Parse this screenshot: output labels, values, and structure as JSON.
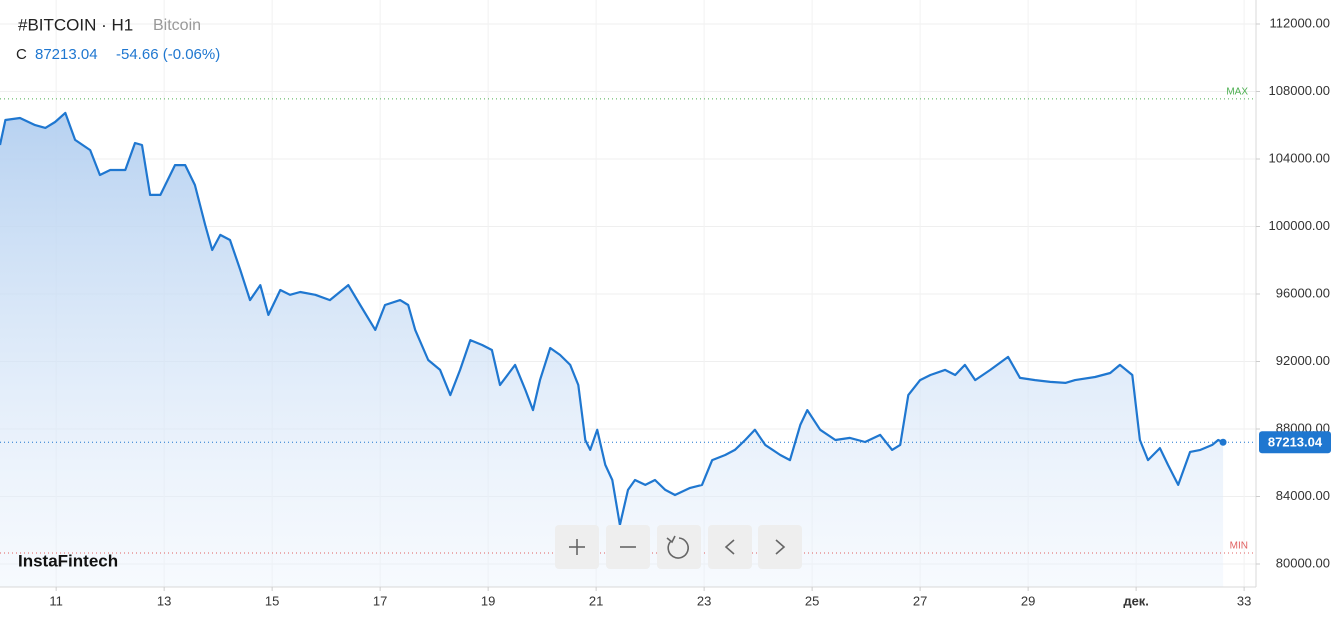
{
  "chart_data": {
    "type": "area",
    "title": "#BITCOIN · H1",
    "subtitle": "Bitcoin",
    "close_prefix": "C",
    "close": 87213.04,
    "change": "-54.66 (-0.06%)",
    "watermark": "InstaFintech",
    "x": [
      9.96,
      10.06,
      10.33,
      10.61,
      10.8,
      10.98,
      11.17,
      11.35,
      11.63,
      11.81,
      12.0,
      12.28,
      12.46,
      12.59,
      12.74,
      12.93,
      13.2,
      13.39,
      13.57,
      13.76,
      13.89,
      14.04,
      14.22,
      14.41,
      14.59,
      14.78,
      14.93,
      15.15,
      15.33,
      15.52,
      15.8,
      16.07,
      16.41,
      16.63,
      16.91,
      17.09,
      17.37,
      17.52,
      17.65,
      17.89,
      18.11,
      18.3,
      18.48,
      18.67,
      18.89,
      19.07,
      19.22,
      19.5,
      19.69,
      19.83,
      19.96,
      20.15,
      20.33,
      20.52,
      20.67,
      20.8,
      20.89,
      21.02,
      21.17,
      21.3,
      21.44,
      21.59,
      21.72,
      21.91,
      22.09,
      22.28,
      22.46,
      22.74,
      22.96,
      23.15,
      23.39,
      23.57,
      23.76,
      23.94,
      24.13,
      24.41,
      24.59,
      24.78,
      24.91,
      25.15,
      25.43,
      25.7,
      25.98,
      26.26,
      26.48,
      26.63,
      26.78,
      27.0,
      27.19,
      27.46,
      27.65,
      27.83,
      28.02,
      28.3,
      28.63,
      28.85,
      29.13,
      29.41,
      29.69,
      29.87,
      30.24,
      30.52,
      30.7,
      30.93,
      31.07,
      31.22,
      31.44,
      31.59,
      31.78,
      32.0,
      32.19,
      32.41,
      32.52,
      32.61
    ],
    "series": [
      {
        "name": "Bitcoin",
        "color": "#1f77d0",
        "values": [
          104830,
          106310,
          106430,
          106010,
          105840,
          106190,
          106730,
          105130,
          104530,
          103050,
          103350,
          103350,
          104950,
          104830,
          101870,
          101870,
          103640,
          103640,
          102460,
          100090,
          98610,
          99500,
          99200,
          97420,
          95640,
          96530,
          94760,
          96240,
          95950,
          96120,
          95950,
          95640,
          96530,
          95350,
          93870,
          95350,
          95640,
          95350,
          93870,
          92090,
          91500,
          90010,
          91500,
          93270,
          92980,
          92680,
          90610,
          91800,
          90310,
          89120,
          90900,
          92800,
          92390,
          91800,
          90610,
          87350,
          86760,
          87950,
          85870,
          84980,
          82310,
          84390,
          84980,
          84690,
          84980,
          84390,
          84090,
          84510,
          84690,
          86160,
          86460,
          86760,
          87350,
          87950,
          87060,
          86460,
          86160,
          88240,
          89120,
          87950,
          87350,
          87470,
          87230,
          87650,
          86760,
          87060,
          90010,
          90900,
          91200,
          91500,
          91200,
          91800,
          90900,
          91500,
          92270,
          91030,
          90900,
          90790,
          90730,
          90900,
          91080,
          91320,
          91800,
          91200,
          87350,
          86160,
          86870,
          85870,
          84690,
          86640,
          86760,
          87060,
          87350,
          87213.04
        ]
      }
    ],
    "xlim": [
      9.96,
      33.22
    ],
    "xticks": [
      11,
      13,
      15,
      17,
      19,
      21,
      23,
      25,
      27,
      29,
      {
        "value": 31,
        "label": "дек."
      },
      33
    ],
    "ylim": [
      80000,
      112000
    ],
    "yticks": [
      {
        "value": 80000,
        "label": "80000.00"
      },
      {
        "value": 84000,
        "label": "84000.00"
      },
      {
        "value": 88000,
        "label": "88000.00"
      },
      {
        "value": 92000,
        "label": "92000.00"
      },
      {
        "value": 96000,
        "label": "96000.00"
      },
      {
        "value": 100000,
        "label": "100000.00"
      },
      {
        "value": 104000,
        "label": "104000.00"
      },
      {
        "value": 108000,
        "label": "108000.00"
      },
      {
        "value": 112000,
        "label": "112000.00"
      }
    ],
    "max_line": {
      "value": 107560,
      "label": "MAX",
      "color": "#4caf50"
    },
    "min_line": {
      "value": 80650,
      "label": "MIN",
      "color": "#e06060"
    },
    "grid": true
  }
}
